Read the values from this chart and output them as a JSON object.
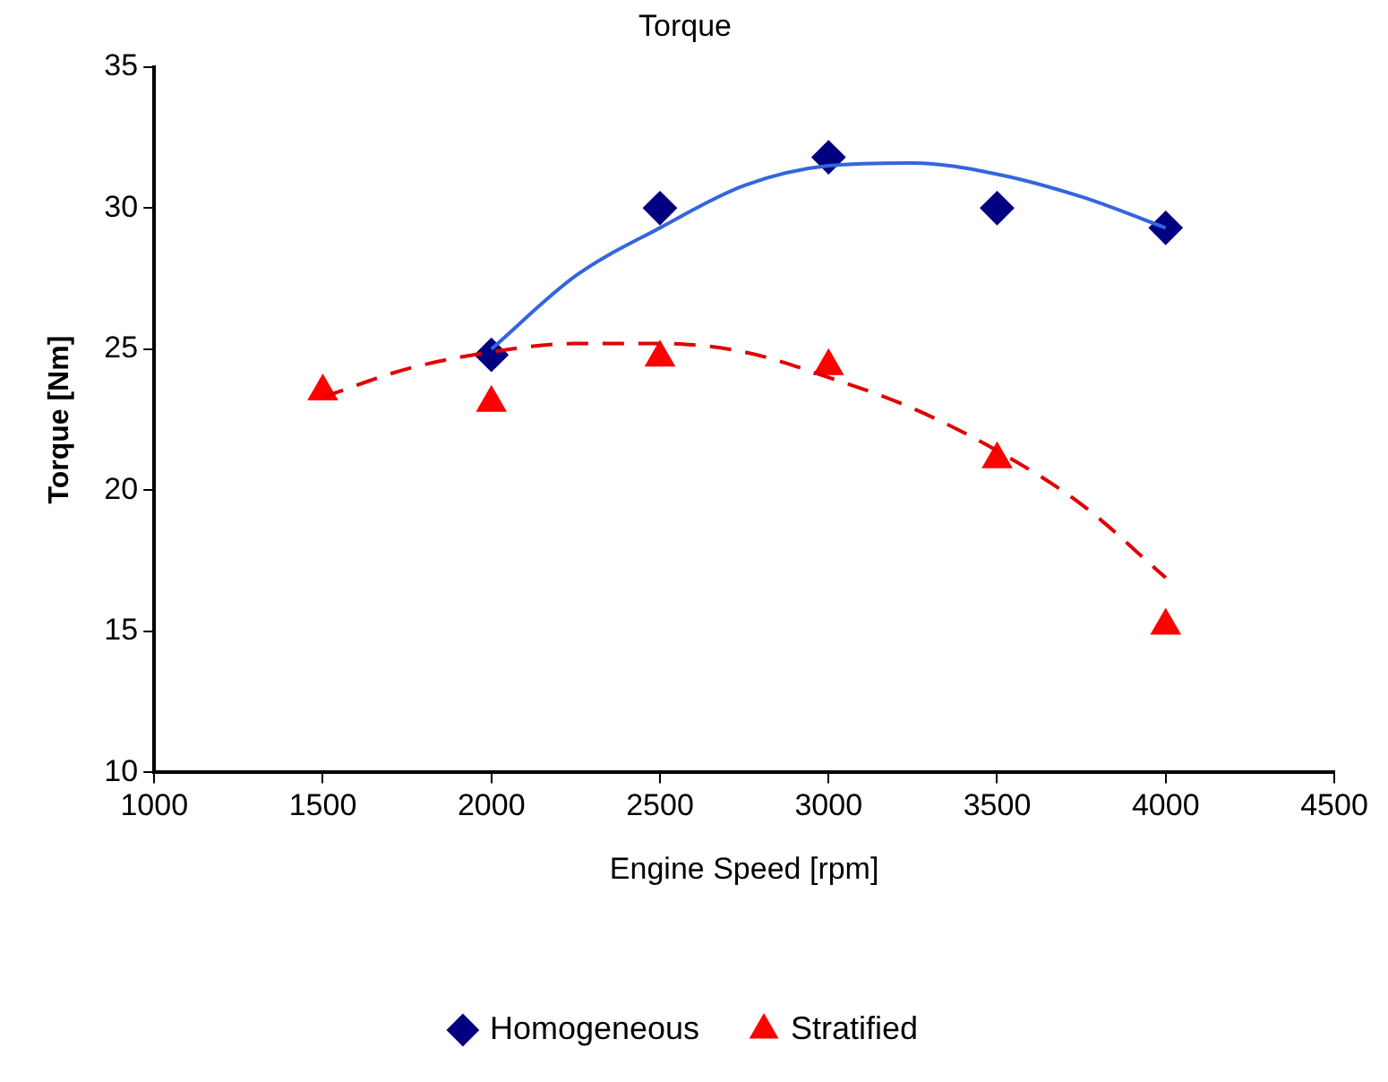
{
  "chart_data": {
    "type": "scatter",
    "title": "Torque",
    "xlabel": "Engine Speed [rpm]",
    "ylabel": "Torque [Nm]",
    "xlim": [
      1000,
      4500
    ],
    "xticks": [
      1000,
      1500,
      2000,
      2500,
      3000,
      3500,
      4000,
      4500
    ],
    "ylim": [
      10,
      35
    ],
    "yticks": [
      10,
      15,
      20,
      25,
      30,
      35
    ],
    "grid": false,
    "legend": "bottom",
    "series": [
      {
        "name": "Homogeneous",
        "marker": "diamond",
        "color": "#000080",
        "x": [
          2000,
          2500,
          3000,
          3500,
          4000
        ],
        "values": [
          24.8,
          30.0,
          31.8,
          30.0,
          29.3
        ]
      },
      {
        "name": "Stratified",
        "marker": "triangle",
        "color": "#ff0000",
        "x": [
          1500,
          2000,
          2500,
          3000,
          3500,
          4000
        ],
        "values": [
          23.5,
          23.1,
          24.7,
          24.4,
          21.1,
          15.2
        ]
      },
      {
        "type": "line",
        "marker": "none",
        "line_style": "solid",
        "color": "#3366dd",
        "x": [
          2000,
          2250,
          2500,
          2750,
          3000,
          3250,
          3500,
          3750,
          4000
        ],
        "values": [
          25.0,
          27.6,
          29.3,
          30.8,
          31.5,
          31.6,
          31.2,
          30.4,
          29.3
        ]
      },
      {
        "type": "line",
        "marker": "none",
        "line_style": "dashed",
        "color": "#e00000",
        "x": [
          1500,
          1750,
          2000,
          2250,
          2500,
          2750,
          3000,
          3250,
          3500,
          3750,
          4000
        ],
        "values": [
          23.3,
          24.3,
          24.9,
          25.2,
          25.2,
          24.9,
          24.0,
          22.9,
          21.4,
          19.5,
          16.9
        ]
      }
    ]
  }
}
